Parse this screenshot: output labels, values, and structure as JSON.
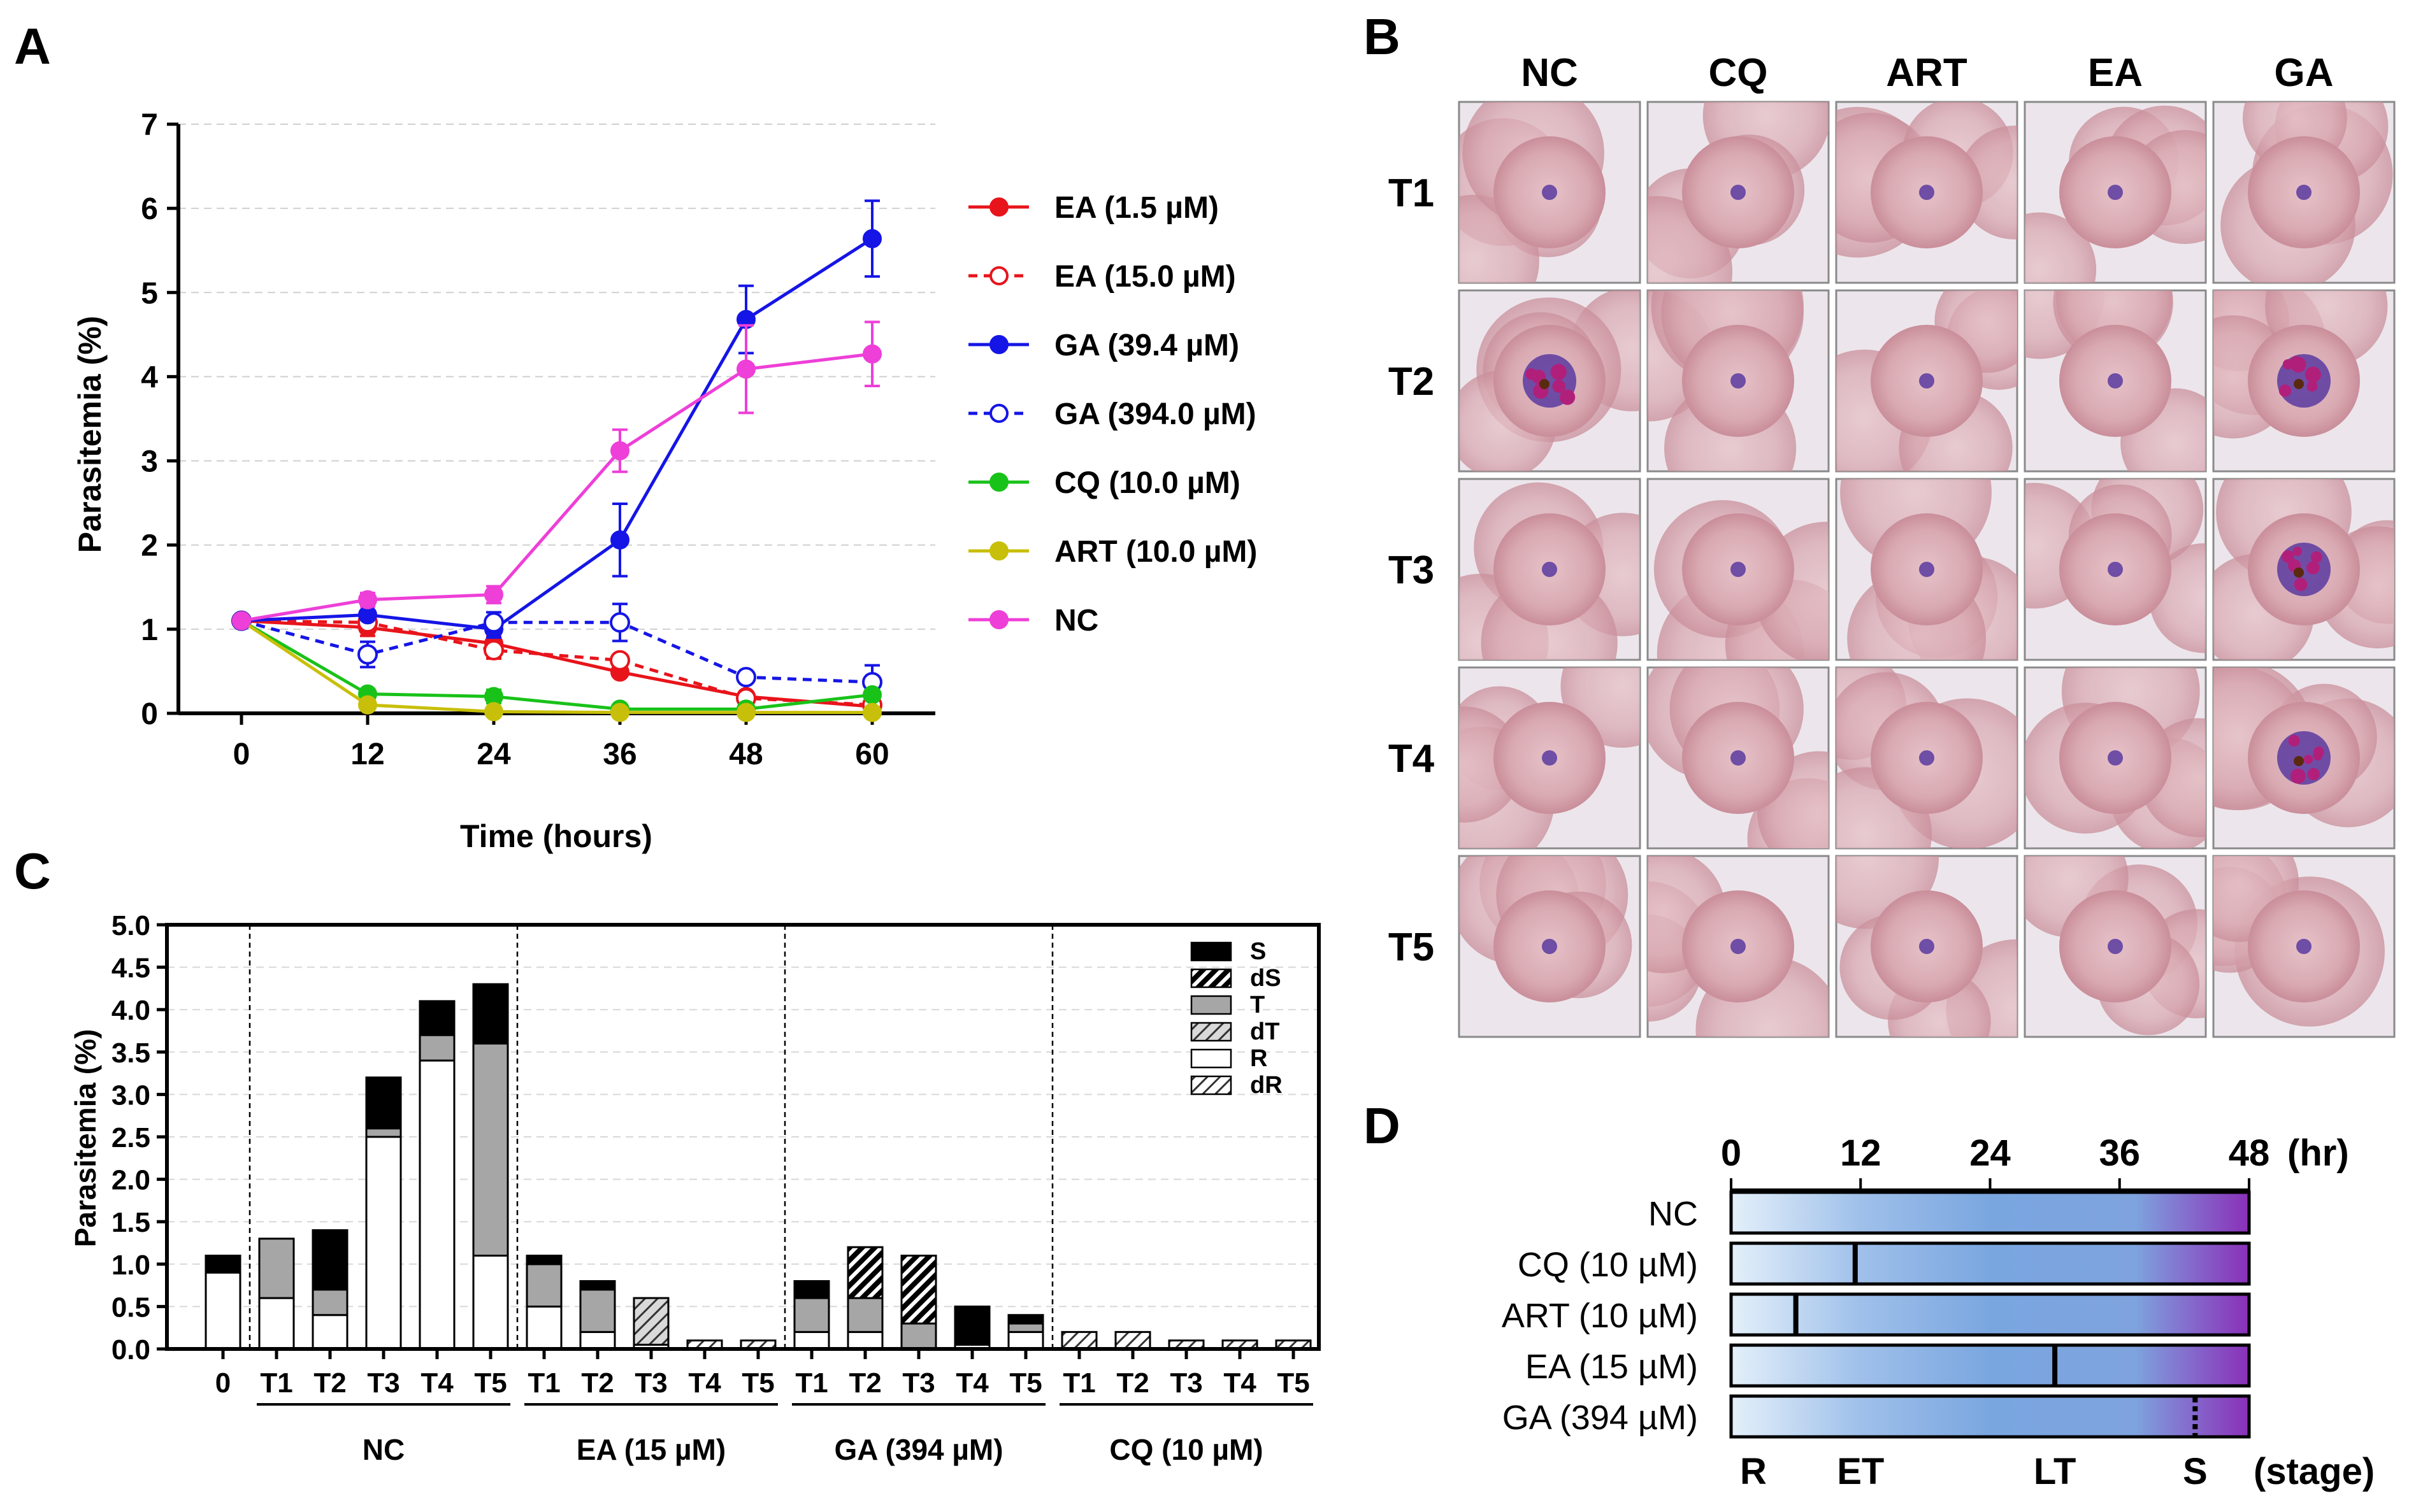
{
  "colors": {
    "ea_low": "#e8141b",
    "ea_high": "#e8141b",
    "ga_low": "#1515e6",
    "ga_high": "#1515e6",
    "cq": "#19c219",
    "art": "#c8bf0a",
    "nc": "#ee3fd8",
    "S": "#000000",
    "T": "#a6a6a6",
    "R": "#ffffff",
    "bar_start": "#dbeaf7",
    "bar_mid": "#7ea9e1",
    "bar_end": "#8b2fb8"
  },
  "panelA": {
    "label": "A",
    "chart_data": {
      "type": "line",
      "title": "",
      "xlabel": "Time (hours)",
      "ylabel": "Parasitemia (%)",
      "x": [
        0,
        12,
        24,
        36,
        48,
        60
      ],
      "xticks": [
        "0",
        "12",
        "24",
        "36",
        "48",
        "60"
      ],
      "yticks": [
        "0",
        "1",
        "2",
        "3",
        "4",
        "5",
        "6",
        "7"
      ],
      "xlim": [
        -6,
        66
      ],
      "ylim": [
        0,
        7
      ],
      "series": [
        {
          "name": "EA (1.5 µM)",
          "color": "#e8141b",
          "dashed": false,
          "filled": true,
          "values": [
            1.1,
            1.02,
            0.83,
            0.49,
            0.2,
            0.08
          ],
          "errors": [
            0.05,
            0.1,
            0.08,
            0.05,
            0.05,
            0.03
          ]
        },
        {
          "name": "EA (15.0 µM)",
          "color": "#e8141b",
          "dashed": true,
          "filled": false,
          "values": [
            1.1,
            1.08,
            0.75,
            0.63,
            0.18,
            0.1
          ],
          "errors": [
            0.05,
            0.1,
            0.1,
            0.05,
            0.05,
            0.03
          ]
        },
        {
          "name": "GA (39.4 µM)",
          "color": "#1515e6",
          "dashed": false,
          "filled": true,
          "values": [
            1.1,
            1.17,
            1.0,
            2.06,
            4.68,
            5.64
          ],
          "errors": [
            0.05,
            0.05,
            0.1,
            0.43,
            0.4,
            0.45
          ]
        },
        {
          "name": "GA (394.0 µM)",
          "color": "#1515e6",
          "dashed": true,
          "filled": false,
          "values": [
            1.1,
            0.7,
            1.08,
            1.08,
            0.43,
            0.37
          ],
          "errors": [
            0.05,
            0.15,
            0.12,
            0.22,
            0.05,
            0.2
          ]
        },
        {
          "name": "CQ (10.0 µM)",
          "color": "#19c219",
          "dashed": false,
          "filled": true,
          "values": [
            1.1,
            0.23,
            0.2,
            0.05,
            0.05,
            0.22
          ],
          "errors": [
            0.05,
            0.05,
            0.08,
            0.02,
            0.02,
            0.03
          ]
        },
        {
          "name": "ART (10.0 µM)",
          "color": "#c8bf0a",
          "dashed": false,
          "filled": true,
          "values": [
            1.1,
            0.1,
            0.02,
            0.01,
            0.01,
            0.01
          ],
          "errors": [
            0.05,
            0.02,
            0.01,
            0.01,
            0.01,
            0.01
          ]
        },
        {
          "name": "NC",
          "color": "#ee3fd8",
          "dashed": false,
          "filled": true,
          "values": [
            1.1,
            1.35,
            1.41,
            3.12,
            4.09,
            4.27
          ],
          "errors": [
            0.05,
            0.08,
            0.1,
            0.25,
            0.52,
            0.38
          ]
        }
      ]
    }
  },
  "panelB": {
    "label": "B",
    "columns": [
      "NC",
      "CQ",
      "ART",
      "EA",
      "GA"
    ],
    "rows": [
      "T1",
      "T2",
      "T3",
      "T4",
      "T5"
    ]
  },
  "panelC": {
    "label": "C",
    "chart_data": {
      "type": "bar",
      "ylabel": "Parasitemia (%)",
      "ylim": [
        0,
        5.0
      ],
      "yticks": [
        "0.0",
        "0.5",
        "1.0",
        "1.5",
        "2.0",
        "2.5",
        "3.0",
        "3.5",
        "4.0",
        "4.5",
        "5.0"
      ],
      "legend": [
        "S",
        "dS",
        "T",
        "dT",
        "R",
        "dR"
      ],
      "groups": [
        {
          "name": "",
          "categories": [
            "0"
          ],
          "bars": [
            [
              {
                "s": "R",
                "v": 0.9
              },
              {
                "s": "S",
                "v": 0.2
              }
            ]
          ]
        },
        {
          "name": "NC",
          "categories": [
            "T1",
            "T2",
            "T3",
            "T4",
            "T5"
          ],
          "bars": [
            [
              {
                "s": "R",
                "v": 0.6
              },
              {
                "s": "T",
                "v": 0.7
              }
            ],
            [
              {
                "s": "R",
                "v": 0.4
              },
              {
                "s": "T",
                "v": 0.3
              },
              {
                "s": "S",
                "v": 0.7
              }
            ],
            [
              {
                "s": "R",
                "v": 2.5
              },
              {
                "s": "T",
                "v": 0.1
              },
              {
                "s": "S",
                "v": 0.6
              }
            ],
            [
              {
                "s": "R",
                "v": 3.4
              },
              {
                "s": "T",
                "v": 0.3
              },
              {
                "s": "S",
                "v": 0.4
              }
            ],
            [
              {
                "s": "R",
                "v": 1.1
              },
              {
                "s": "T",
                "v": 2.5
              },
              {
                "s": "S",
                "v": 0.7
              }
            ]
          ]
        },
        {
          "name": "EA (15 µM)",
          "categories": [
            "T1",
            "T2",
            "T3",
            "T4",
            "T5"
          ],
          "bars": [
            [
              {
                "s": "R",
                "v": 0.5
              },
              {
                "s": "T",
                "v": 0.5
              },
              {
                "s": "S",
                "v": 0.1
              }
            ],
            [
              {
                "s": "R",
                "v": 0.2
              },
              {
                "s": "T",
                "v": 0.5
              },
              {
                "s": "S",
                "v": 0.1
              }
            ],
            [
              {
                "s": "R",
                "v": 0.05
              },
              {
                "s": "dT",
                "v": 0.55
              }
            ],
            [
              {
                "s": "dR",
                "v": 0.1
              }
            ],
            [
              {
                "s": "dR",
                "v": 0.1
              }
            ]
          ]
        },
        {
          "name": "GA (394 µM)",
          "categories": [
            "T1",
            "T2",
            "T3",
            "T4",
            "T5"
          ],
          "bars": [
            [
              {
                "s": "R",
                "v": 0.2
              },
              {
                "s": "T",
                "v": 0.4
              },
              {
                "s": "S",
                "v": 0.2
              }
            ],
            [
              {
                "s": "R",
                "v": 0.2
              },
              {
                "s": "T",
                "v": 0.4
              },
              {
                "s": "dS",
                "v": 0.6
              }
            ],
            [
              {
                "s": "T",
                "v": 0.3
              },
              {
                "s": "dS",
                "v": 0.8
              }
            ],
            [
              {
                "s": "R",
                "v": 0.05
              },
              {
                "s": "S",
                "v": 0.45
              }
            ],
            [
              {
                "s": "R",
                "v": 0.2
              },
              {
                "s": "T",
                "v": 0.1
              },
              {
                "s": "S",
                "v": 0.1
              }
            ]
          ]
        },
        {
          "name": "CQ (10 µM)",
          "categories": [
            "T1",
            "T2",
            "T3",
            "T4",
            "T5"
          ],
          "bars": [
            [
              {
                "s": "dR",
                "v": 0.2
              }
            ],
            [
              {
                "s": "dR",
                "v": 0.2
              }
            ],
            [
              {
                "s": "dR",
                "v": 0.1
              }
            ],
            [
              {
                "s": "dR",
                "v": 0.1
              }
            ],
            [
              {
                "s": "dR",
                "v": 0.1
              }
            ]
          ]
        }
      ]
    }
  },
  "panelD": {
    "label": "D",
    "axis_ticks": [
      "0",
      "12",
      "24",
      "36",
      "48"
    ],
    "unit": "(hr)",
    "stage_unit": "(stage)",
    "stages": [
      {
        "label": "R",
        "t": 0
      },
      {
        "label": "ET",
        "t": 12
      },
      {
        "label": "LT",
        "t": 30
      },
      {
        "label": "S",
        "t": 43
      }
    ],
    "rows": [
      {
        "label": "NC",
        "arrest": null,
        "dotted": false
      },
      {
        "label": "CQ (10 µM)",
        "arrest": 11.5,
        "dotted": false
      },
      {
        "label": "ART (10 µM)",
        "arrest": 6,
        "dotted": false
      },
      {
        "label": "EA (15 µM)",
        "arrest": 30,
        "dotted": false
      },
      {
        "label": "GA (394 µM)",
        "arrest": 43,
        "dotted": true
      }
    ]
  }
}
